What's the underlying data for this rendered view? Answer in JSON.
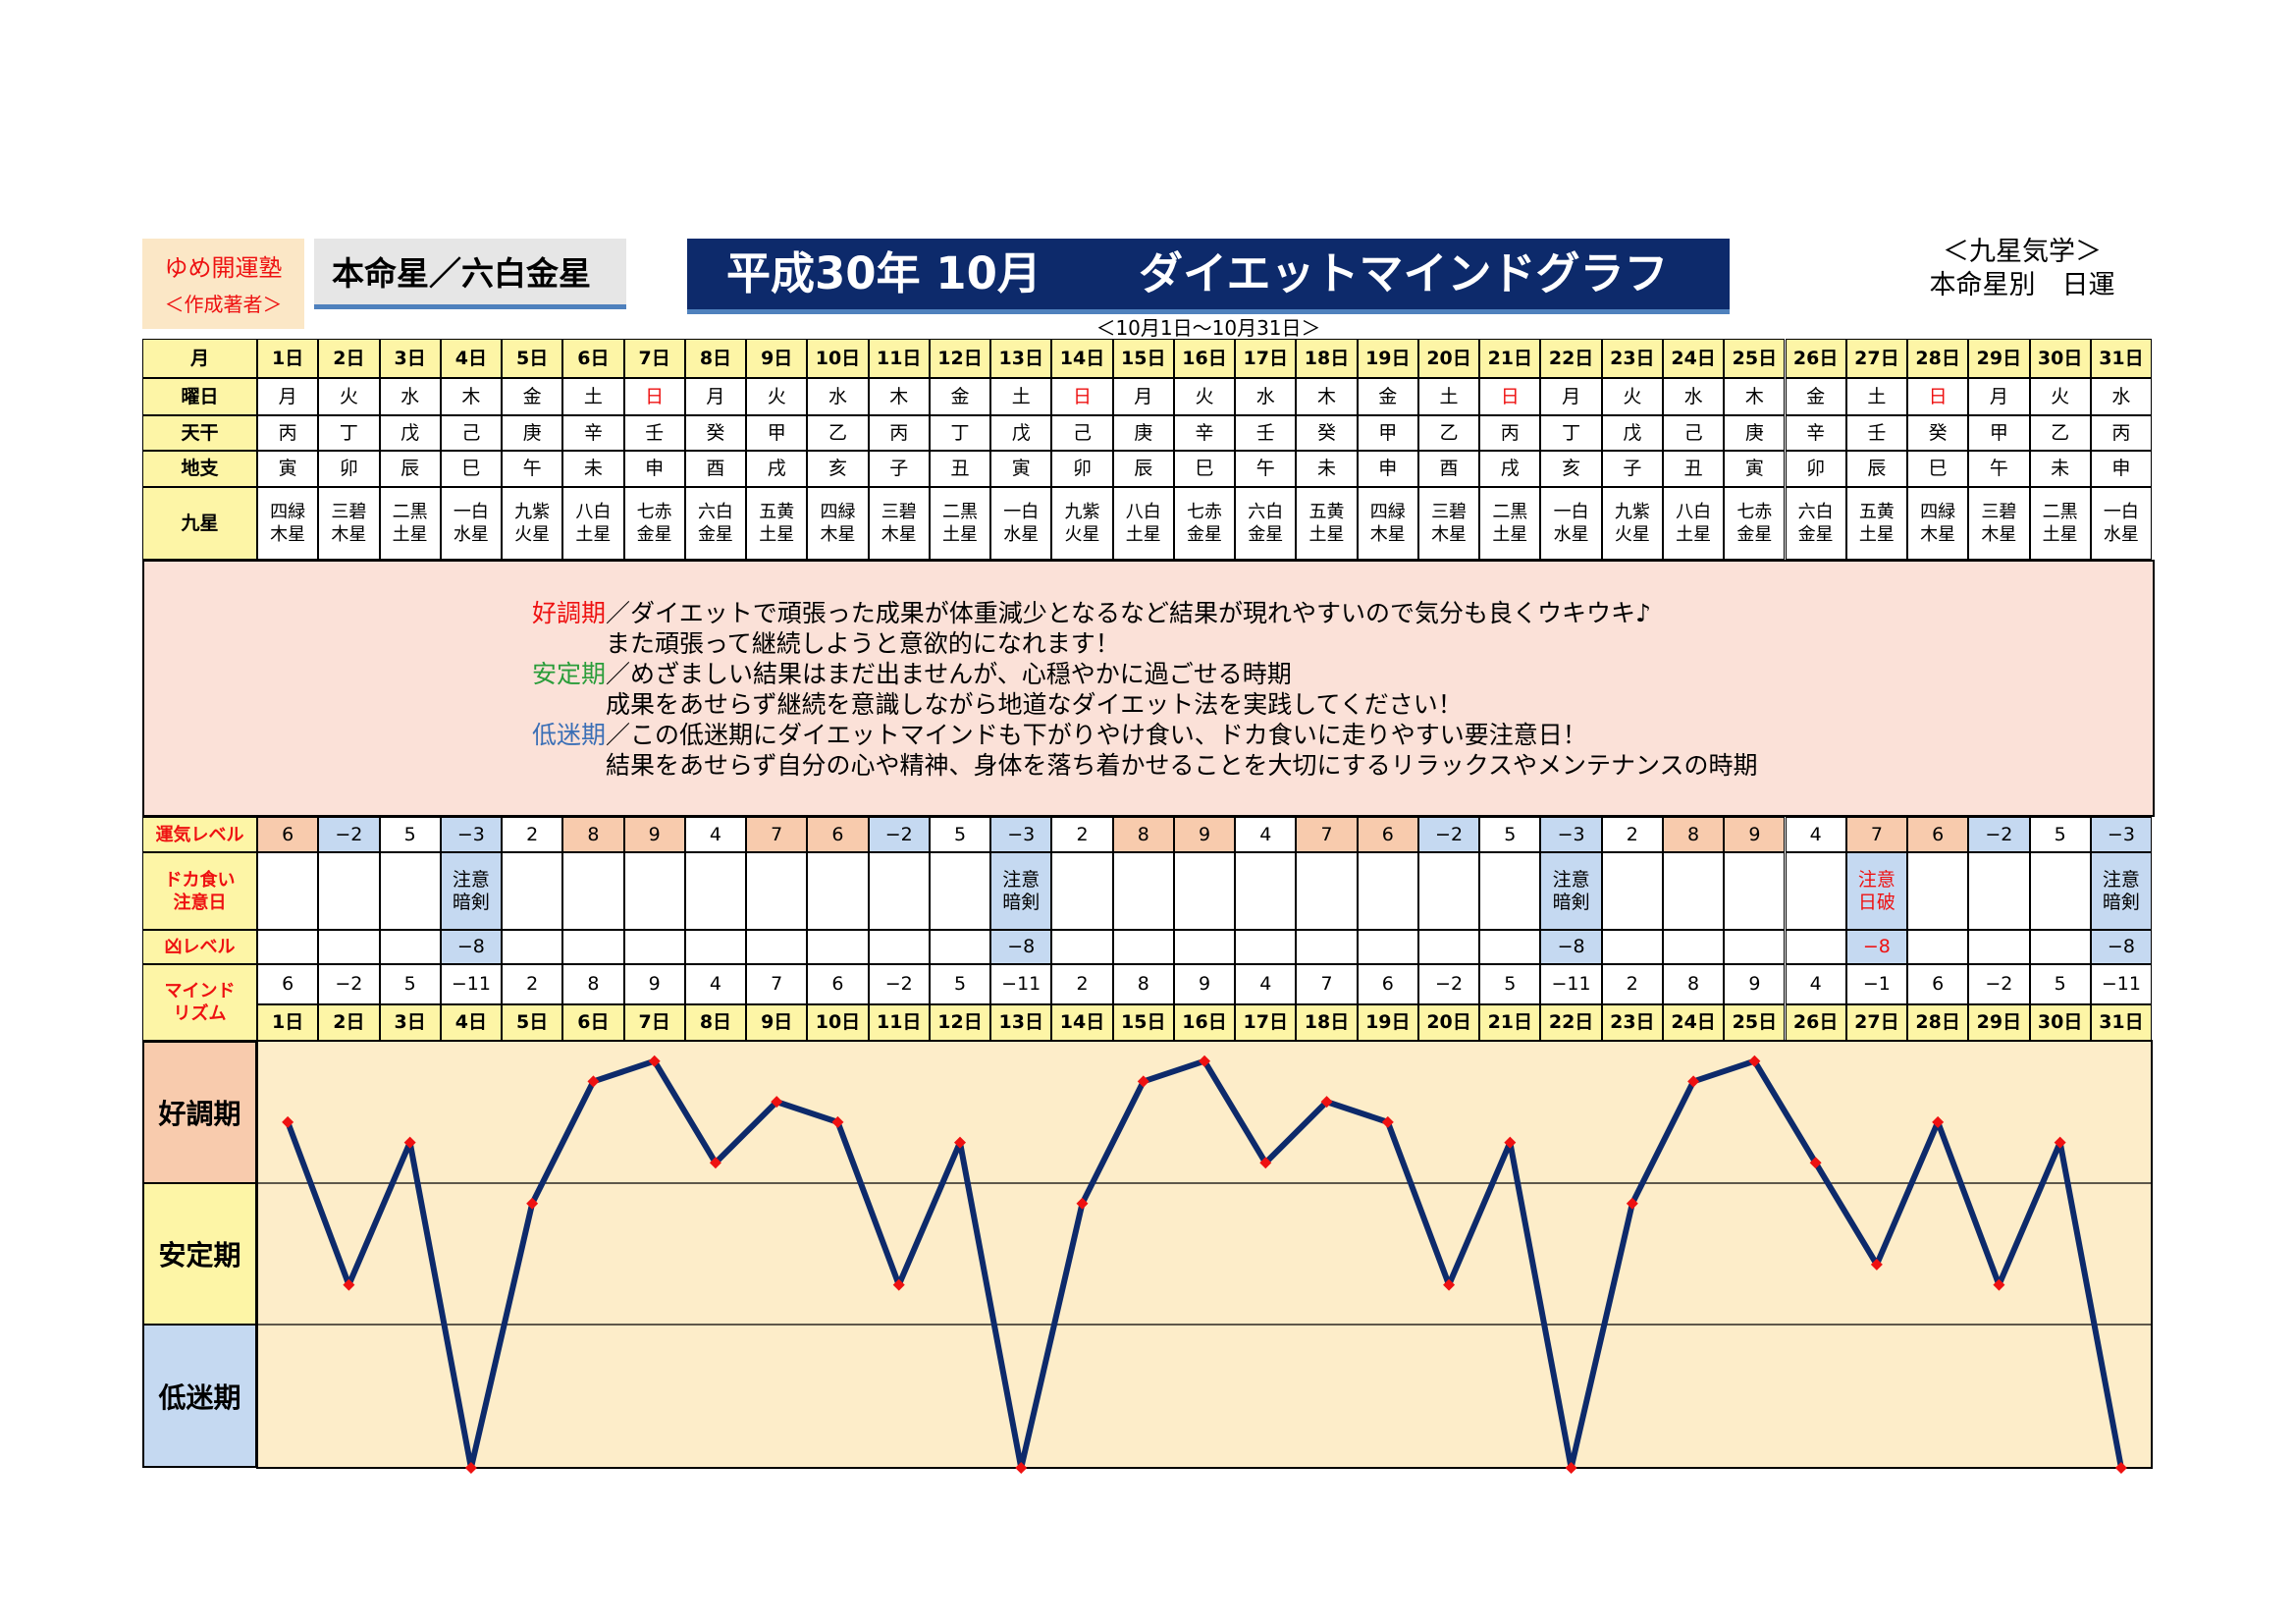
{
  "author": {
    "name": "ゆめ開運塾",
    "sub": "＜作成著者＞"
  },
  "honmei": "本命星／六白金星",
  "title": {
    "left": "平成30年 10月",
    "right": "ダイエットマインドグラフ"
  },
  "period": "＜10月1日～10月31日＞",
  "kyusei": {
    "line1": "＜九星気学＞",
    "line2": "本命星別　日運"
  },
  "row_labels": {
    "month": "月",
    "weekday": "曜日",
    "tenkan": "天干",
    "chishi": "地支",
    "kyusei": "九星",
    "unki": "運気レベル",
    "doka": "ドカ食い\n注意日",
    "kyo": "凶レベル",
    "mind": "マインド\nリズム"
  },
  "days": [
    "1日",
    "2日",
    "3日",
    "4日",
    "5日",
    "6日",
    "7日",
    "8日",
    "9日",
    "10日",
    "11日",
    "12日",
    "13日",
    "14日",
    "15日",
    "16日",
    "17日",
    "18日",
    "19日",
    "20日",
    "21日",
    "22日",
    "23日",
    "24日",
    "25日",
    "26日",
    "27日",
    "28日",
    "29日",
    "30日",
    "31日"
  ],
  "weekdays": [
    "月",
    "火",
    "水",
    "木",
    "金",
    "土",
    "日",
    "月",
    "火",
    "水",
    "木",
    "金",
    "土",
    "日",
    "月",
    "火",
    "水",
    "木",
    "金",
    "土",
    "日",
    "月",
    "火",
    "水",
    "木",
    "金",
    "土",
    "日",
    "月",
    "火",
    "水"
  ],
  "tenkan": [
    "丙",
    "丁",
    "戊",
    "己",
    "庚",
    "辛",
    "壬",
    "癸",
    "甲",
    "乙",
    "丙",
    "丁",
    "戊",
    "己",
    "庚",
    "辛",
    "壬",
    "癸",
    "甲",
    "乙",
    "丙",
    "丁",
    "戊",
    "己",
    "庚",
    "辛",
    "壬",
    "癸",
    "甲",
    "乙",
    "丙"
  ],
  "chishi": [
    "寅",
    "卯",
    "辰",
    "巳",
    "午",
    "未",
    "申",
    "酉",
    "戌",
    "亥",
    "子",
    "丑",
    "寅",
    "卯",
    "辰",
    "巳",
    "午",
    "未",
    "申",
    "酉",
    "戌",
    "亥",
    "子",
    "丑",
    "寅",
    "卯",
    "辰",
    "巳",
    "午",
    "未",
    "申"
  ],
  "kyusei_stars": [
    "四緑\n木星",
    "三碧\n木星",
    "二黒\n土星",
    "一白\n水星",
    "九紫\n火星",
    "八白\n土星",
    "七赤\n金星",
    "六白\n金星",
    "五黄\n土星",
    "四緑\n木星",
    "三碧\n木星",
    "二黒\n土星",
    "一白\n水星",
    "九紫\n火星",
    "八白\n土星",
    "七赤\n金星",
    "六白\n金星",
    "五黄\n土星",
    "四緑\n木星",
    "三碧\n木星",
    "二黒\n土星",
    "一白\n水星",
    "九紫\n火星",
    "八白\n土星",
    "七赤\n金星",
    "六白\n金星",
    "五黄\n土星",
    "四緑\n木星",
    "三碧\n木星",
    "二黒\n土星",
    "一白\n水星"
  ],
  "description": {
    "good_label": "好調期",
    "good_line1": "／ダイエットで頑張った成果が体重減少となるなど結果が現れやすいので気分も良くウキウキ♪",
    "good_line2": "　　　また頑張って継続しようと意欲的になれます！",
    "stable_label": "安定期",
    "stable_line1": "／めざましい結果はまだ出ませんが、心穏やかに過ごせる時期",
    "stable_line2": "　　　成果をあせらず継続を意識しながら地道なダイエット法を実践してください！",
    "low_label": "低迷期",
    "low_line1": "／この低迷期にダイエットマインドも下がりやけ食い、ドカ食いに走りやすい要注意日！",
    "low_line2": "　　　結果をあせらず自分の心や精神、身体を落ち着かせることを大切にするリラックスやメンテナンスの時期"
  },
  "unki_level": [
    "6",
    "−2",
    "5",
    "−3",
    "2",
    "8",
    "9",
    "4",
    "7",
    "6",
    "−2",
    "5",
    "−3",
    "2",
    "8",
    "9",
    "4",
    "7",
    "6",
    "−2",
    "5",
    "−3",
    "2",
    "8",
    "9",
    "4",
    "7",
    "6",
    "−2",
    "5",
    "−3"
  ],
  "doka_notes": [
    "",
    "",
    "",
    "注意\n暗剣",
    "",
    "",
    "",
    "",
    "",
    "",
    "",
    "",
    "注意\n暗剣",
    "",
    "",
    "",
    "",
    "",
    "",
    "",
    "",
    "注意\n暗剣",
    "",
    "",
    "",
    "",
    "注意\n日破",
    "",
    "",
    "",
    "注意\n暗剣"
  ],
  "kyo_level": [
    "",
    "",
    "",
    "−8",
    "",
    "",
    "",
    "",
    "",
    "",
    "",
    "",
    "−8",
    "",
    "",
    "",
    "",
    "",
    "",
    "",
    "",
    "−8",
    "",
    "",
    "",
    "",
    "−8",
    "",
    "",
    "",
    "−8"
  ],
  "mind_rhythm": [
    "6",
    "−2",
    "5",
    "−11",
    "2",
    "8",
    "9",
    "4",
    "7",
    "6",
    "−2",
    "5",
    "−11",
    "2",
    "8",
    "9",
    "4",
    "7",
    "6",
    "−2",
    "5",
    "−11",
    "2",
    "8",
    "9",
    "4",
    "−1",
    "6",
    "−2",
    "5",
    "−11"
  ],
  "colors": {
    "header_yellow": "#fdf5a6",
    "header_red_text": "#e11",
    "good_bg": "#f8cbad",
    "stable_bg": "#fdf5a6",
    "low_bg": "#c5d9f1",
    "chart_bg": "#fdedc9",
    "line": "#0d2a6b",
    "marker": "#e11"
  },
  "chart_data": {
    "type": "line",
    "categories": [
      "1",
      "2",
      "3",
      "4",
      "5",
      "6",
      "7",
      "8",
      "9",
      "10",
      "11",
      "12",
      "13",
      "14",
      "15",
      "16",
      "17",
      "18",
      "19",
      "20",
      "21",
      "22",
      "23",
      "24",
      "25",
      "26",
      "27",
      "28",
      "29",
      "30",
      "31"
    ],
    "series": [
      {
        "values": [
          6,
          -2,
          5,
          -11,
          2,
          8,
          9,
          4,
          7,
          6,
          -2,
          5,
          -11,
          2,
          8,
          9,
          4,
          7,
          6,
          -2,
          5,
          -11,
          2,
          8,
          9,
          4,
          -1,
          6,
          -2,
          5,
          -11
        ]
      }
    ],
    "bands": [
      "好調期",
      "安定期",
      "低迷期"
    ],
    "ylim": [
      -11,
      10
    ]
  }
}
